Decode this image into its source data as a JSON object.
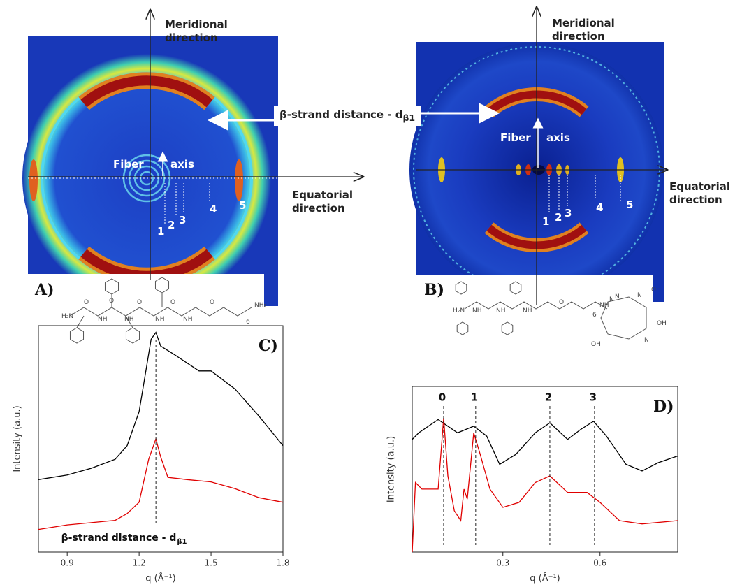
{
  "panels": [
    {
      "label": "A)",
      "meridional": "Meridional direction",
      "equatorial": "Equatorial direction",
      "fiber": "Fiber",
      "axis": "axis",
      "reflections": [
        "1",
        "2",
        "3",
        "4",
        "5"
      ],
      "structure_labels": [
        "H₂N",
        "O",
        "NH",
        "O",
        "NH",
        "O",
        "NH",
        "O",
        "NH",
        "O",
        "6",
        "NH₂"
      ]
    },
    {
      "label": "B)",
      "meridional": "Meridional direction",
      "equatorial": "Equatorial direction",
      "fiber": "Fiber",
      "axis": "axis",
      "reflections": [
        "1",
        "2",
        "3",
        "4",
        "5"
      ],
      "structure_labels": [
        "H₂N",
        "NH",
        "NH",
        "NH",
        "O",
        "6",
        "NH",
        "N",
        "N",
        "N",
        "N",
        "OH",
        "OH",
        "OH"
      ]
    }
  ],
  "annotation": {
    "text": "β-strand distance - d",
    "subscript": "β1"
  },
  "chart_data": [
    {
      "type": "line",
      "label": "C)",
      "x_label": "q (Å⁻¹)",
      "y_label": "Intensity (a.u.)",
      "xlim": [
        0.78,
        1.8
      ],
      "ylim": [
        0,
        100
      ],
      "xticks": [
        0.9,
        1.2,
        1.5,
        1.8
      ],
      "annotation": {
        "text": "β-strand distance - d",
        "subscript": "β1"
      },
      "peaks": [
        {
          "x": 1.27
        }
      ],
      "series": [
        {
          "color": "#000000",
          "x": [
            0.78,
            0.9,
            1.0,
            1.1,
            1.15,
            1.2,
            1.25,
            1.27,
            1.29,
            1.35,
            1.45,
            1.5,
            1.6,
            1.7,
            1.8
          ],
          "values": [
            32,
            34,
            37,
            41,
            47,
            62,
            94,
            97,
            91,
            87,
            80,
            80,
            72,
            60,
            47
          ]
        },
        {
          "color": "#e00000",
          "x": [
            0.78,
            0.9,
            1.0,
            1.1,
            1.15,
            1.2,
            1.24,
            1.27,
            1.29,
            1.32,
            1.4,
            1.5,
            1.6,
            1.7,
            1.8
          ],
          "values": [
            10,
            12,
            13,
            14,
            17,
            22,
            41,
            50,
            42,
            33,
            32,
            31,
            28,
            24,
            22
          ]
        }
      ]
    },
    {
      "type": "line",
      "label": "D)",
      "x_label": "q (Å⁻¹)",
      "y_label": "Intensity (a.u.)",
      "xlim": [
        0.02,
        0.84
      ],
      "ylim": [
        0,
        100
      ],
      "xticks": [
        0.3,
        0.6
      ],
      "peaks": [
        {
          "label": "0",
          "x": 0.117
        },
        {
          "label": "1",
          "x": 0.216
        },
        {
          "label": "2",
          "x": 0.445
        },
        {
          "label": "3",
          "x": 0.583
        }
      ],
      "series": [
        {
          "color": "#000000",
          "x": [
            0.02,
            0.04,
            0.1,
            0.16,
            0.21,
            0.25,
            0.29,
            0.34,
            0.4,
            0.445,
            0.5,
            0.54,
            0.58,
            0.62,
            0.68,
            0.73,
            0.78,
            0.84
          ],
          "values": [
            68,
            72,
            80,
            72,
            76,
            70,
            53,
            59,
            72,
            78,
            68,
            74,
            79,
            70,
            53,
            49,
            54,
            58
          ]
        },
        {
          "color": "#e00000",
          "x": [
            0.02,
            0.03,
            0.05,
            0.1,
            0.117,
            0.13,
            0.15,
            0.17,
            0.18,
            0.19,
            0.21,
            0.23,
            0.26,
            0.3,
            0.35,
            0.4,
            0.445,
            0.5,
            0.56,
            0.6,
            0.66,
            0.73,
            0.84
          ],
          "values": [
            0,
            42,
            38,
            38,
            81,
            46,
            25,
            19,
            38,
            32,
            72,
            59,
            38,
            27,
            30,
            42,
            46,
            36,
            36,
            30,
            19,
            17,
            19
          ]
        }
      ]
    }
  ]
}
